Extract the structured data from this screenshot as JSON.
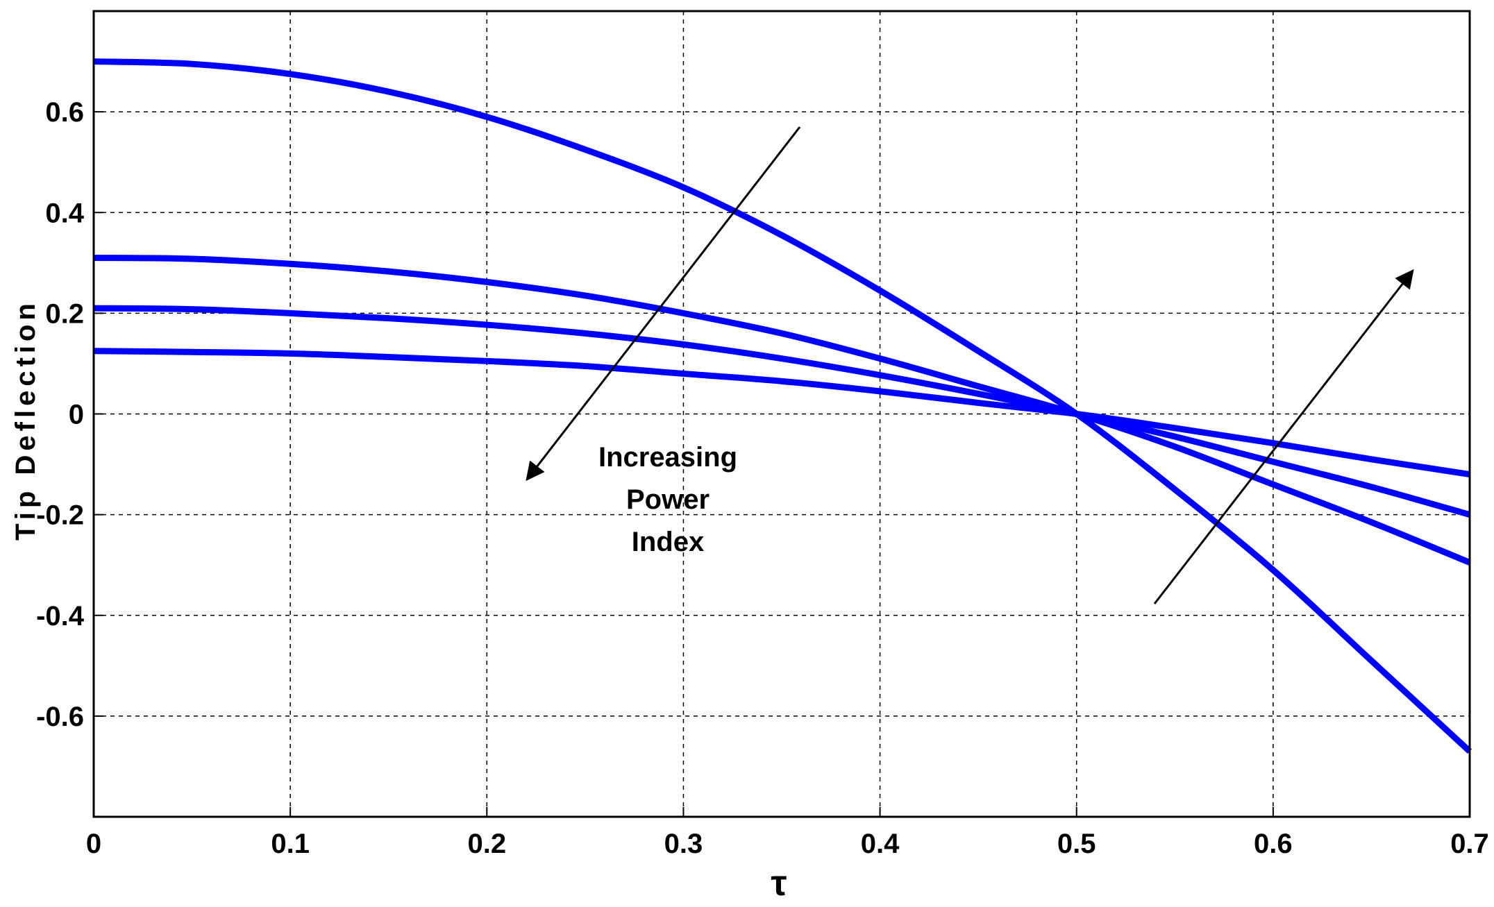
{
  "chart_data": {
    "type": "line",
    "title": "",
    "xlabel": "τ",
    "ylabel": "Tip Deflection",
    "xlim": [
      0,
      0.7
    ],
    "ylim": [
      -0.8,
      0.8
    ],
    "x_ticks": [
      0,
      0.1,
      0.2,
      0.3,
      0.4,
      0.5,
      0.6,
      0.7
    ],
    "x_tick_labels": [
      "0",
      "0.1",
      "0.2",
      "0.3",
      "0.4",
      "0.5",
      "0.6",
      "0.7"
    ],
    "y_ticks": [
      0.6,
      0.4,
      0.2,
      0,
      -0.2,
      -0.4,
      -0.6
    ],
    "y_tick_labels": [
      "0.6",
      "0.4",
      "0.2",
      "0",
      "-0.2",
      "-0.4",
      "-0.6"
    ],
    "grid": true,
    "legend": "none",
    "line_color": "#0000ff",
    "x": [
      0,
      0.05,
      0.1,
      0.15,
      0.2,
      0.25,
      0.3,
      0.35,
      0.4,
      0.45,
      0.5,
      0.55,
      0.6,
      0.65,
      0.7
    ],
    "series": [
      {
        "values": [
          0.7,
          0.695,
          0.675,
          0.64,
          0.59,
          0.525,
          0.45,
          0.355,
          0.245,
          0.125,
          0,
          -0.15,
          -0.31,
          -0.49,
          -0.67
        ]
      },
      {
        "values": [
          0.31,
          0.308,
          0.298,
          0.283,
          0.262,
          0.235,
          0.2,
          0.16,
          0.11,
          0.055,
          0,
          -0.065,
          -0.14,
          -0.215,
          -0.295
        ]
      },
      {
        "values": [
          0.21,
          0.208,
          0.2,
          0.19,
          0.177,
          0.16,
          0.138,
          0.11,
          0.077,
          0.04,
          0,
          -0.045,
          -0.095,
          -0.145,
          -0.2
        ]
      },
      {
        "values": [
          0.125,
          0.123,
          0.12,
          0.113,
          0.105,
          0.095,
          0.08,
          0.065,
          0.045,
          0.022,
          0,
          -0.028,
          -0.058,
          -0.09,
          -0.12
        ]
      }
    ],
    "annotations": [
      {
        "text_lines": [
          "Increasing",
          "Power",
          "Index"
        ]
      }
    ]
  }
}
